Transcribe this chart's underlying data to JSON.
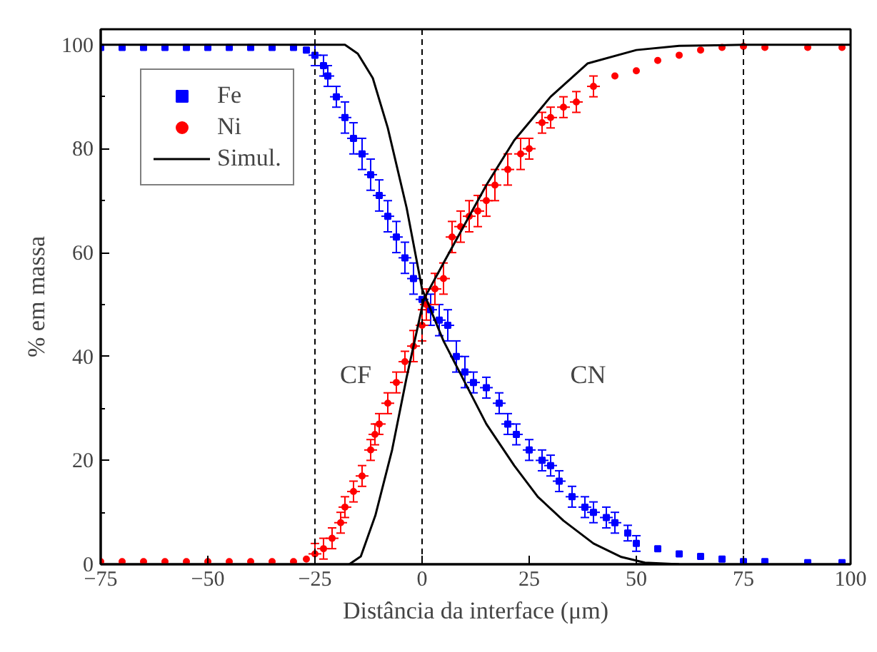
{
  "chart_data": {
    "type": "scatter",
    "xlabel": "Distância da interface (μm)",
    "ylabel": "% em massa",
    "xlim": [
      -75,
      100
    ],
    "ylim": [
      0,
      103
    ],
    "xticks": [
      -75,
      -50,
      -25,
      0,
      25,
      50,
      75,
      100
    ],
    "yticks": [
      0,
      20,
      40,
      60,
      80,
      100
    ],
    "grid": false,
    "legend": "top left",
    "series": [
      {
        "name": "Fe",
        "marker": "square",
        "color": "#0000ff",
        "x": [
          -75,
          -70,
          -65,
          -60,
          -55,
          -50,
          -45,
          -40,
          -35,
          -30,
          -27,
          -25,
          -23,
          -22,
          -20,
          -18,
          -16,
          -14,
          -12,
          -10,
          -8,
          -6,
          -4,
          -2,
          0,
          2,
          4,
          6,
          8,
          10,
          12,
          15,
          18,
          20,
          22,
          25,
          28,
          30,
          32,
          35,
          38,
          40,
          43,
          45,
          48,
          50,
          55,
          60,
          65,
          70,
          75,
          80,
          90,
          98
        ],
        "values": [
          99.5,
          99.5,
          99.5,
          99.5,
          99.5,
          99.5,
          99.5,
          99.5,
          99.5,
          99.5,
          99,
          98,
          96,
          94,
          90,
          86,
          82,
          79,
          75,
          71,
          67,
          63,
          59,
          55,
          51,
          49,
          47,
          46,
          40,
          37,
          35,
          34,
          31,
          27,
          25,
          22,
          20,
          19,
          16,
          13,
          11,
          10,
          9,
          8,
          6,
          4,
          3,
          2,
          1.5,
          1,
          0.5,
          0.5,
          0.3,
          0.3
        ],
        "errors": [
          null,
          null,
          null,
          null,
          null,
          null,
          null,
          null,
          null,
          null,
          null,
          2,
          2,
          2,
          2,
          3,
          3,
          3,
          3,
          3,
          3,
          3,
          3,
          3,
          null,
          3,
          3,
          3,
          3,
          3,
          2,
          2,
          2,
          2,
          2,
          2,
          2,
          2,
          2,
          2,
          2,
          2,
          2,
          2,
          1.5,
          1.5,
          null,
          null,
          null,
          null,
          null,
          null,
          null,
          null
        ],
        "xerrors": [
          0,
          0,
          0,
          0,
          0,
          0,
          0,
          0,
          0,
          0,
          0,
          1.5,
          1.5,
          1.5,
          1.5,
          1.5,
          1.5,
          1.5,
          1.5,
          1.5,
          1.5,
          1.5,
          1.5,
          1.5,
          1.5,
          1.5,
          1.5,
          1.5,
          1.5,
          1.5,
          1.5,
          1.5,
          1.5,
          1.5,
          1.5,
          1.5,
          1.5,
          1.5,
          1.5,
          1.5,
          1.5,
          1.5,
          1.5,
          1.5,
          0,
          0,
          0,
          0,
          0,
          0,
          0,
          0,
          0,
          0
        ]
      },
      {
        "name": "Ni",
        "marker": "circle",
        "color": "#ff0000",
        "x": [
          -75,
          -70,
          -65,
          -60,
          -55,
          -50,
          -45,
          -40,
          -35,
          -30,
          -27,
          -25,
          -23,
          -21,
          -19,
          -18,
          -16,
          -14,
          -12,
          -11,
          -10,
          -8,
          -6,
          -4,
          -2,
          0,
          1,
          3,
          5,
          7,
          9,
          11,
          13,
          15,
          17,
          20,
          23,
          25,
          28,
          30,
          33,
          36,
          40,
          45,
          50,
          55,
          60,
          65,
          70,
          75,
          80,
          90,
          98
        ],
        "values": [
          0.5,
          0.5,
          0.5,
          0.5,
          0.5,
          0.5,
          0.5,
          0.5,
          0.5,
          0.5,
          1,
          2,
          3,
          5,
          8,
          11,
          14,
          17,
          22,
          25,
          27,
          31,
          35,
          39,
          42,
          46,
          50,
          53,
          55,
          63,
          65,
          67,
          68,
          70,
          73,
          76,
          79,
          80,
          85,
          86,
          88,
          89,
          92,
          94,
          95,
          97,
          98,
          99,
          99.5,
          99.7,
          99.5,
          99.5,
          99.5
        ],
        "errors": [
          null,
          null,
          null,
          null,
          null,
          null,
          null,
          null,
          null,
          null,
          null,
          2,
          2,
          2,
          2,
          2,
          2,
          2,
          2,
          2,
          2,
          2,
          2,
          2,
          3,
          3,
          3,
          3,
          3,
          3,
          3,
          3,
          3,
          3,
          3,
          3,
          3,
          2,
          2,
          2,
          2,
          2,
          2,
          null,
          null,
          null,
          null,
          null,
          null,
          null,
          null,
          null,
          null
        ],
        "xerrors": [
          0,
          0,
          0,
          0,
          0,
          0,
          0,
          0,
          0,
          0,
          0,
          1.5,
          1.5,
          1.5,
          1.5,
          1.5,
          1.5,
          1.5,
          1.5,
          1.5,
          1.5,
          1.5,
          1.5,
          1.5,
          1.5,
          1.5,
          1.5,
          1.5,
          1.5,
          1.5,
          1.5,
          1.5,
          1.5,
          1.5,
          1.5,
          1.5,
          1.5,
          1.5,
          1.5,
          1.5,
          1.5,
          1.5,
          1.5,
          0,
          0,
          0,
          0,
          0,
          0,
          0,
          0,
          0,
          0
        ]
      },
      {
        "name": "Simul.",
        "type": "line",
        "color": "#000000",
        "x": [
          -75,
          -18,
          -15,
          -11.5,
          -8,
          -3.6,
          0,
          5,
          10,
          15,
          21.5,
          27,
          33,
          40,
          46.5,
          52,
          60
        ],
        "values": [
          100,
          100,
          98.3,
          93.6,
          84,
          68.6,
          53,
          43,
          35,
          27,
          19,
          13,
          8.4,
          4,
          1.4,
          0.3,
          0
        ]
      },
      {
        "type": "line",
        "color": "#000000",
        "x": [
          -17,
          -14.3,
          -10.9,
          -7,
          -3.6,
          0.4,
          5,
          9,
          15,
          21.5,
          30,
          38.6,
          50,
          60,
          75,
          100
        ],
        "values": [
          0,
          1.5,
          9.4,
          22,
          36,
          51,
          58,
          64,
          73,
          81.6,
          90,
          96.4,
          99,
          99.8,
          100,
          100
        ]
      }
    ],
    "ref_lines": [
      {
        "axis": "x",
        "value": -25,
        "line_style": "dashed",
        "color": "#000000"
      },
      {
        "axis": "x",
        "value": 0,
        "line_style": "dashed",
        "color": "#000000"
      },
      {
        "axis": "x",
        "value": 75,
        "line_style": "dashed",
        "color": "#000000"
      }
    ],
    "annotations": [
      "CF",
      "CN"
    ]
  }
}
